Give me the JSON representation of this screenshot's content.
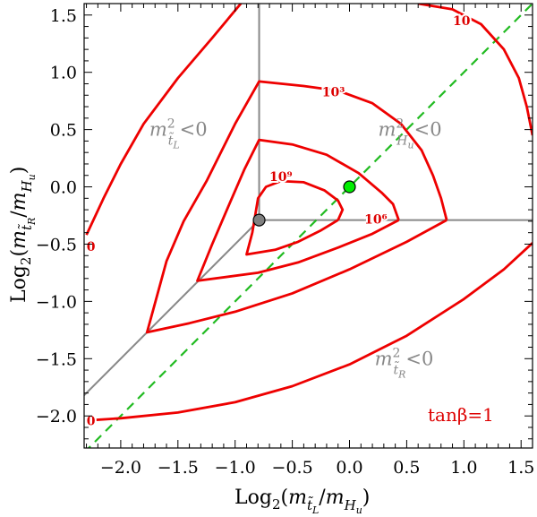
{
  "chart_data": {
    "type": "line",
    "title": "",
    "xlabel": "Log2(m_tL/m_Hu)",
    "ylabel": "Log2(m_tR/m_Hu)",
    "xlim": [
      -2.32,
      1.6
    ],
    "ylim": [
      -2.28,
      1.6
    ],
    "x_ticks": [
      -2.0,
      -1.5,
      -1.0,
      -0.5,
      0.0,
      0.5,
      1.0,
      1.5
    ],
    "x_tick_labels": [
      "−2.0",
      "−1.5",
      "−1.0",
      "−0.5",
      "0.0",
      "0.5",
      "1.0",
      "1.5"
    ],
    "y_ticks": [
      -2.0,
      -1.5,
      -1.0,
      -0.5,
      0.0,
      0.5,
      1.0,
      1.5
    ],
    "y_tick_labels": [
      "−2.0",
      "−1.5",
      "−1.0",
      "−0.5",
      "0.0",
      "0.5",
      "1.0",
      "1.5"
    ],
    "grid": false,
    "annotation": "tanβ=1",
    "colors": {
      "contour": "#ee0000",
      "boundary": "#888888",
      "diagonal": "#22bb22",
      "green_point": "#00ee00",
      "gray_point": "#808080"
    },
    "boundary_lines": {
      "vertical_x": -0.79,
      "horizontal_y": -0.29,
      "diagonal_through": [
        -0.79,
        -0.29
      ]
    },
    "diagonal_line": {
      "slope": 1,
      "intercept": 0,
      "style": "dashed"
    },
    "points": [
      {
        "name": "gray",
        "x": -0.79,
        "y": -0.29
      },
      {
        "name": "green",
        "x": 0.0,
        "y": 0.0
      }
    ],
    "regions": [
      {
        "label_main": "m",
        "label_sub": "t̃",
        "label_subsub": "L",
        "label_tail": "<0",
        "x": -1.75,
        "y": 0.5
      },
      {
        "label_main": "m",
        "label_sub": "H",
        "label_subsub": "u",
        "label_tail": "<0",
        "x": 0.25,
        "y": 0.5
      },
      {
        "label_main": "m",
        "label_sub": "t̃",
        "label_subsub": "R",
        "label_tail": "<0",
        "x": 0.22,
        "y": -1.5
      }
    ],
    "series": [
      {
        "label": "10⁹",
        "segments": [
          [
            [
              -0.1,
              -0.29
            ],
            [
              -0.25,
              -0.38
            ],
            [
              -0.45,
              -0.48
            ],
            [
              -0.65,
              -0.55
            ],
            [
              -0.9,
              -0.59
            ],
            [
              -0.85,
              -0.4
            ],
            [
              -0.8,
              -0.1
            ],
            [
              -0.73,
              0.0
            ],
            [
              -0.6,
              0.05
            ],
            [
              -0.4,
              0.04
            ],
            [
              -0.22,
              -0.03
            ],
            [
              -0.1,
              -0.12
            ],
            [
              -0.06,
              -0.2
            ],
            [
              -0.1,
              -0.29
            ]
          ]
        ],
        "label_pos": [
          -0.6,
          0.09
        ]
      },
      {
        "label": "10⁶",
        "segments": [
          [
            [
              0.43,
              -0.29
            ],
            [
              0.2,
              -0.41
            ],
            [
              -0.1,
              -0.53
            ],
            [
              -0.45,
              -0.66
            ],
            [
              -0.8,
              -0.75
            ],
            [
              -1.33,
              -0.82
            ],
            [
              -1.2,
              -0.5
            ],
            [
              -1.05,
              -0.15
            ],
            [
              -0.92,
              0.15
            ],
            [
              -0.79,
              0.41
            ],
            [
              -0.5,
              0.37
            ],
            [
              -0.2,
              0.28
            ],
            [
              0.08,
              0.12
            ],
            [
              0.28,
              -0.05
            ],
            [
              0.38,
              -0.15
            ],
            [
              0.43,
              -0.29
            ]
          ]
        ],
        "label_pos": [
          0.23,
          -0.28
        ]
      },
      {
        "label": "10³",
        "segments": [
          [
            [
              0.85,
              -0.29
            ],
            [
              0.5,
              -0.48
            ],
            [
              0.0,
              -0.72
            ],
            [
              -0.5,
              -0.93
            ],
            [
              -1.0,
              -1.09
            ],
            [
              -1.4,
              -1.19
            ],
            [
              -1.77,
              -1.27
            ],
            [
              -1.6,
              -0.65
            ],
            [
              -1.45,
              -0.3
            ],
            [
              -1.25,
              0.05
            ],
            [
              -1.0,
              0.55
            ],
            [
              -0.79,
              0.92
            ],
            [
              -0.4,
              0.88
            ],
            [
              -0.1,
              0.84
            ],
            [
              0.2,
              0.73
            ],
            [
              0.45,
              0.55
            ],
            [
              0.63,
              0.32
            ],
            [
              0.73,
              0.1
            ],
            [
              0.8,
              -0.1
            ],
            [
              0.85,
              -0.29
            ]
          ]
        ],
        "label_pos": [
          -0.14,
          0.83
        ]
      },
      {
        "label": "10",
        "segments": [
          [
            [
              0.6,
              1.6
            ],
            [
              0.9,
              1.55
            ],
            [
              1.15,
              1.42
            ],
            [
              1.35,
              1.2
            ],
            [
              1.48,
              0.95
            ],
            [
              1.55,
              0.7
            ],
            [
              1.6,
              0.45
            ]
          ]
        ],
        "label_pos": [
          0.98,
          1.45
        ]
      },
      {
        "label": "0",
        "segments": [
          [
            [
              -2.3,
              -0.42
            ],
            [
              -2.15,
              -0.1
            ],
            [
              -2.0,
              0.2
            ],
            [
              -1.8,
              0.55
            ],
            [
              -1.5,
              0.95
            ],
            [
              -1.2,
              1.3
            ],
            [
              -0.95,
              1.6
            ]
          ],
          [
            [
              -2.3,
              -2.04
            ],
            [
              -2.0,
              -2.02
            ],
            [
              -1.5,
              -1.97
            ],
            [
              -1.0,
              -1.88
            ],
            [
              -0.5,
              -1.74
            ],
            [
              0.0,
              -1.55
            ],
            [
              0.5,
              -1.3
            ],
            [
              1.0,
              -0.98
            ],
            [
              1.35,
              -0.72
            ],
            [
              1.6,
              -0.49
            ]
          ]
        ],
        "label_pos": [
          -2.26,
          -0.52
        ],
        "label_pos2": [
          -2.26,
          -2.04
        ]
      }
    ]
  }
}
